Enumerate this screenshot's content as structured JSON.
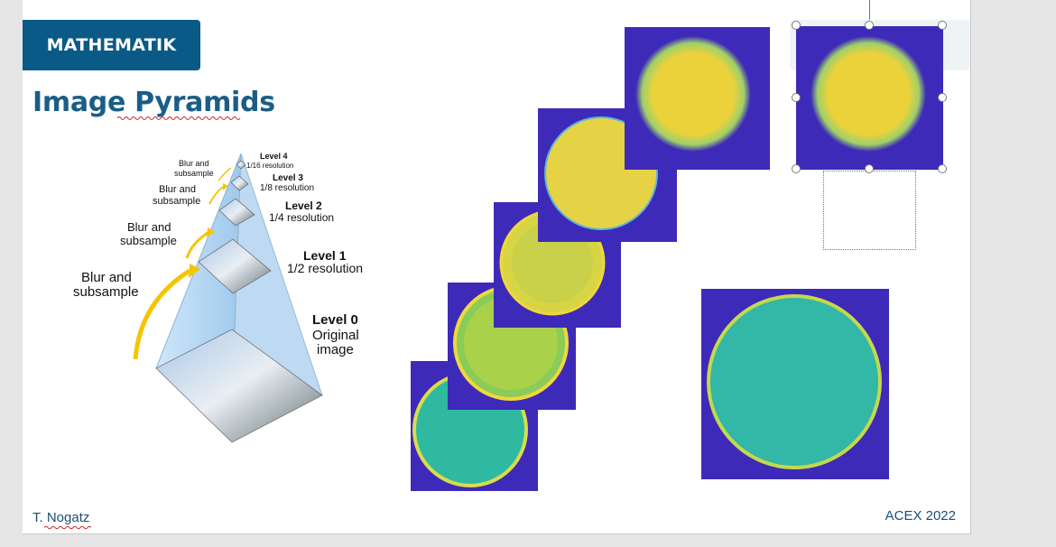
{
  "slide": {
    "badge_label": "MATHEMATIK",
    "title": "Image Pyramids",
    "footer_author": "T. Nogatz",
    "footer_event": "ACEX 2022"
  },
  "pyramid": {
    "arrow_label": "Blur and subsample",
    "levels": [
      {
        "name": "Level 4",
        "resolution": "1/16 resolution"
      },
      {
        "name": "Level 3",
        "resolution": "1/8 resolution"
      },
      {
        "name": "Level 2",
        "resolution": "1/4 resolution"
      },
      {
        "name": "Level 1",
        "resolution": "1/2 resolution"
      },
      {
        "name": "Level 0",
        "resolution_line1": "Original",
        "resolution_line2": "image"
      }
    ]
  },
  "colors": {
    "brand_blue": "#0a5a87",
    "title_blue": "#1a5e86",
    "plot_background": "#3e2ab8",
    "disc_yellow": "#f2d63a",
    "disc_green": "#2fb9a0",
    "arrow_yellow": "#f7c500"
  }
}
